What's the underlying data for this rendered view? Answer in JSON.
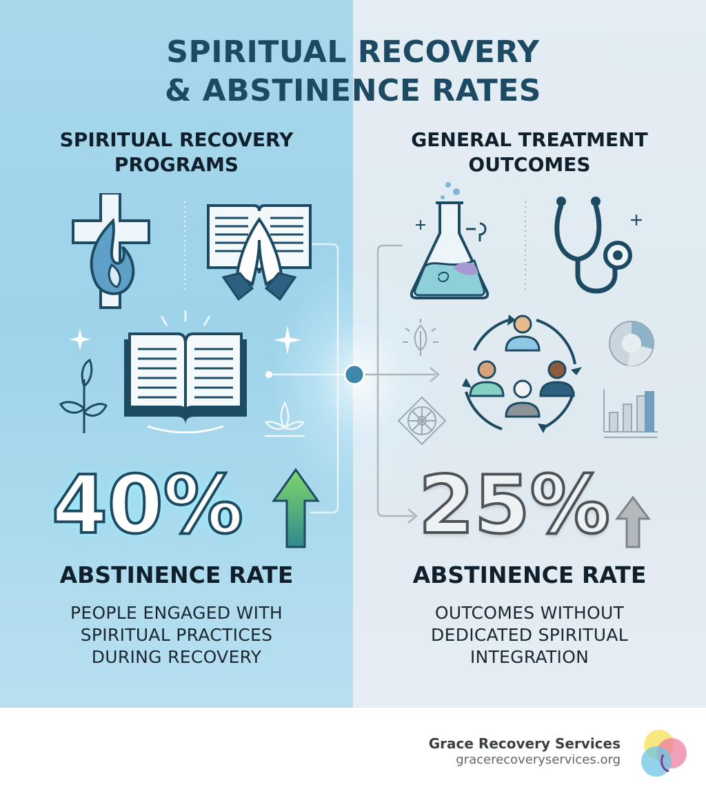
{
  "title": {
    "line1": "SPIRITUAL RECOVERY",
    "line2": "& ABSTINENCE RATES"
  },
  "left": {
    "heading_line1": "SPIRITUAL RECOVERY",
    "heading_line2": "PROGRAMS",
    "stat": "40%",
    "stat_trend": "up",
    "rate_label": "ABSTINENCE RATE",
    "desc_line1": "PEOPLE ENGAGED WITH",
    "desc_line2": "SPIRITUAL PRACTICES",
    "desc_line3": "DURING RECOVERY",
    "icons": [
      "cross-flame-icon",
      "bible-praying-hands-icon",
      "open-book-icon",
      "sprout-icon",
      "lotus-icon",
      "sparkle-icon"
    ]
  },
  "right": {
    "heading_line1": "GENERAL TREATMENT",
    "heading_line2": "OUTCOMES",
    "stat": "25%",
    "stat_trend": "up",
    "rate_label": "ABSTINENCE RATE",
    "desc_line1": "OUTCOMES WITHOUT",
    "desc_line2": "DEDICATED SPIRITUAL",
    "desc_line3": "INTEGRATION",
    "icons": [
      "flask-icon",
      "stethoscope-icon",
      "group-cycle-icon",
      "leaf-icon",
      "pie-chart-icon",
      "bar-chart-icon",
      "mandala-icon"
    ]
  },
  "footer": {
    "brand_name": "Grace Recovery Services",
    "brand_url": "gracerecoveryservices.org"
  },
  "colors": {
    "left_bg": "#9ed3ea",
    "right_bg": "#e0eaf1",
    "title": "#1d4a63",
    "arrow_green": "#3fae5a",
    "arrow_gray": "#9aa2a8"
  }
}
